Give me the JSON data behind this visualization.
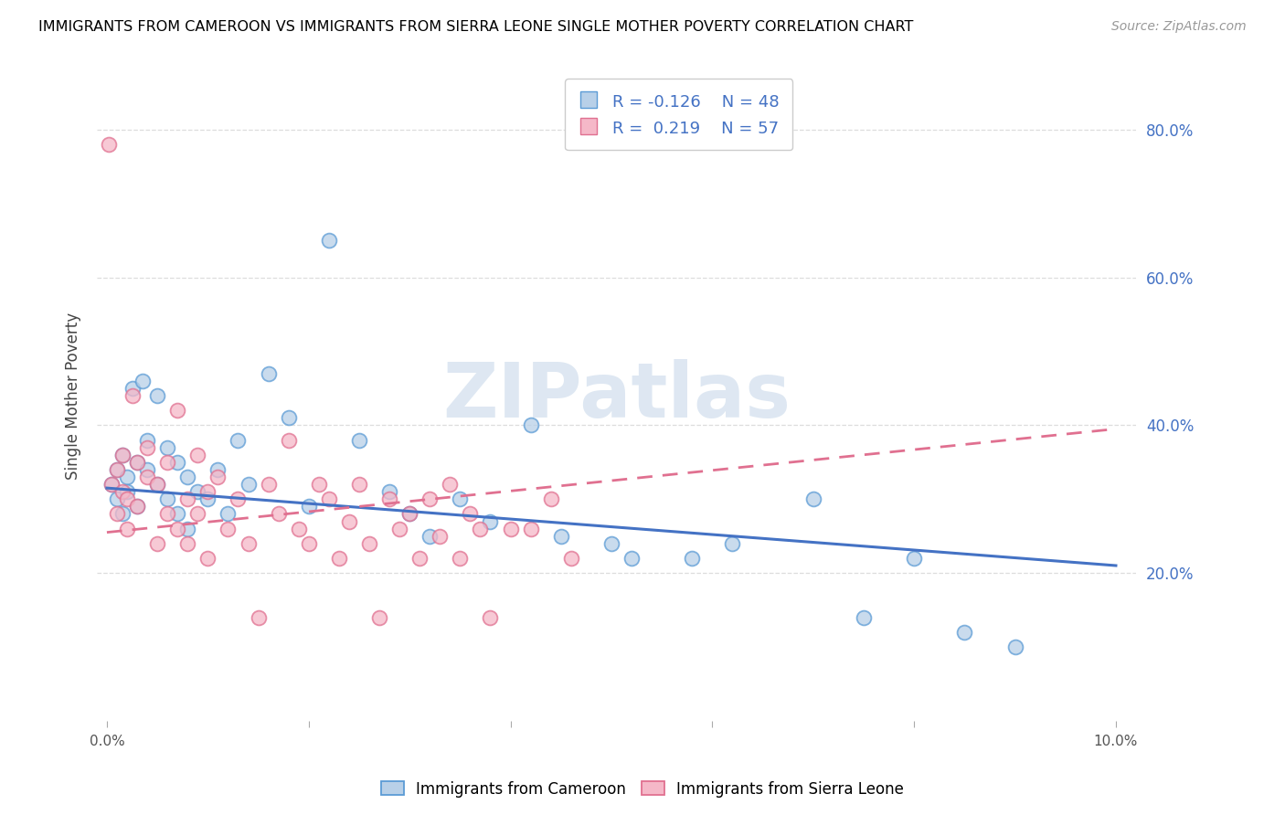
{
  "title": "IMMIGRANTS FROM CAMEROON VS IMMIGRANTS FROM SIERRA LEONE SINGLE MOTHER POVERTY CORRELATION CHART",
  "source": "Source: ZipAtlas.com",
  "ylabel_left": "Single Mother Poverty",
  "legend_label_1": "Immigrants from Cameroon",
  "legend_label_2": "Immigrants from Sierra Leone",
  "R1": -0.126,
  "N1": 48,
  "R2": 0.219,
  "N2": 57,
  "color_blue_fill": "#b8d0e8",
  "color_blue_edge": "#5b9bd5",
  "color_pink_fill": "#f5b8c8",
  "color_pink_edge": "#e07090",
  "color_blue_line": "#4472c4",
  "color_pink_line": "#e07090",
  "color_axis_text": "#4472c4",
  "xlim_min": -0.001,
  "xlim_max": 0.102,
  "ylim_min": 0.0,
  "ylim_max": 0.88,
  "yticks_right": [
    0.2,
    0.4,
    0.6,
    0.8
  ],
  "ytick_right_labels": [
    "20.0%",
    "40.0%",
    "60.0%",
    "80.0%"
  ],
  "grid_color": "#dddddd",
  "watermark": "ZIPatlas",
  "watermark_color": "#c8d8ea",
  "cam_line_x0": 0.0,
  "cam_line_y0": 0.315,
  "cam_line_x1": 0.1,
  "cam_line_y1": 0.21,
  "sl_line_x0": 0.0,
  "sl_line_y0": 0.255,
  "sl_line_x1": 0.1,
  "sl_line_y1": 0.395,
  "cameroon_x": [
    0.0005,
    0.001,
    0.001,
    0.0015,
    0.0015,
    0.002,
    0.002,
    0.0025,
    0.003,
    0.003,
    0.0035,
    0.004,
    0.004,
    0.005,
    0.005,
    0.006,
    0.006,
    0.007,
    0.007,
    0.008,
    0.008,
    0.009,
    0.01,
    0.011,
    0.012,
    0.013,
    0.014,
    0.016,
    0.018,
    0.02,
    0.022,
    0.025,
    0.028,
    0.03,
    0.032,
    0.035,
    0.038,
    0.042,
    0.045,
    0.05,
    0.052,
    0.058,
    0.062,
    0.07,
    0.075,
    0.08,
    0.085,
    0.09
  ],
  "cameroon_y": [
    0.32,
    0.34,
    0.3,
    0.36,
    0.28,
    0.33,
    0.31,
    0.45,
    0.29,
    0.35,
    0.46,
    0.34,
    0.38,
    0.32,
    0.44,
    0.37,
    0.3,
    0.35,
    0.28,
    0.33,
    0.26,
    0.31,
    0.3,
    0.34,
    0.28,
    0.38,
    0.32,
    0.47,
    0.41,
    0.29,
    0.65,
    0.38,
    0.31,
    0.28,
    0.25,
    0.3,
    0.27,
    0.4,
    0.25,
    0.24,
    0.22,
    0.22,
    0.24,
    0.3,
    0.14,
    0.22,
    0.12,
    0.1
  ],
  "sierraleone_x": [
    0.0002,
    0.0005,
    0.001,
    0.001,
    0.0015,
    0.0015,
    0.002,
    0.002,
    0.0025,
    0.003,
    0.003,
    0.004,
    0.004,
    0.005,
    0.005,
    0.006,
    0.006,
    0.007,
    0.007,
    0.008,
    0.008,
    0.009,
    0.009,
    0.01,
    0.01,
    0.011,
    0.012,
    0.013,
    0.014,
    0.015,
    0.016,
    0.017,
    0.018,
    0.019,
    0.02,
    0.021,
    0.022,
    0.023,
    0.024,
    0.025,
    0.026,
    0.027,
    0.028,
    0.029,
    0.03,
    0.031,
    0.032,
    0.033,
    0.034,
    0.035,
    0.036,
    0.037,
    0.038,
    0.04,
    0.042,
    0.044,
    0.046
  ],
  "sierraleone_y": [
    0.78,
    0.32,
    0.34,
    0.28,
    0.31,
    0.36,
    0.3,
    0.26,
    0.44,
    0.29,
    0.35,
    0.33,
    0.37,
    0.32,
    0.24,
    0.35,
    0.28,
    0.42,
    0.26,
    0.3,
    0.24,
    0.36,
    0.28,
    0.31,
    0.22,
    0.33,
    0.26,
    0.3,
    0.24,
    0.14,
    0.32,
    0.28,
    0.38,
    0.26,
    0.24,
    0.32,
    0.3,
    0.22,
    0.27,
    0.32,
    0.24,
    0.14,
    0.3,
    0.26,
    0.28,
    0.22,
    0.3,
    0.25,
    0.32,
    0.22,
    0.28,
    0.26,
    0.14,
    0.26,
    0.26,
    0.3,
    0.22
  ]
}
